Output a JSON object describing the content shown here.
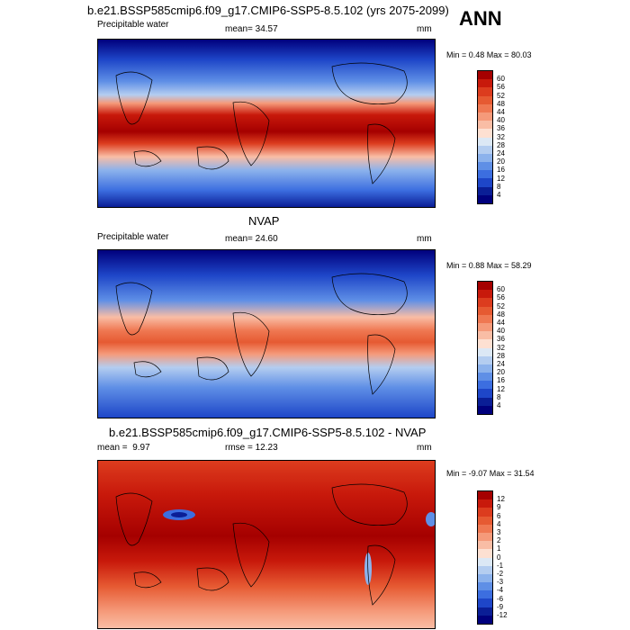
{
  "annual_label": "ANN",
  "panels": [
    {
      "title": "b.e21.BSSP585cmip6.f09_g17.CMIP6-SSP5-8.5.102 (yrs 2075-2099)",
      "left_label": "Precipitable water",
      "mean_label": "mean=",
      "mean_value": "34.57",
      "unit": "mm",
      "minmax": "Min =   0.48 Max =  80.03",
      "levels": [
        "60",
        "56",
        "52",
        "48",
        "44",
        "40",
        "36",
        "32",
        "28",
        "24",
        "20",
        "16",
        "12",
        "8",
        "4"
      ],
      "colors": [
        "#a50000",
        "#c8190b",
        "#dc3c1e",
        "#e65a32",
        "#ef7852",
        "#f59a7a",
        "#f9bda5",
        "#fde0d2",
        "#dce8f5",
        "#b4cdf0",
        "#8cb2ec",
        "#5f8fe6",
        "#3c6ee0",
        "#1e46c8",
        "#0a1e96",
        "#00007d"
      ]
    },
    {
      "title": "NVAP",
      "left_label": "Precipitable water",
      "mean_label": "mean=",
      "mean_value": "24.60",
      "unit": "mm",
      "minmax": "Min =   0.88 Max =  58.29",
      "levels": [
        "60",
        "56",
        "52",
        "48",
        "44",
        "40",
        "36",
        "32",
        "28",
        "24",
        "20",
        "16",
        "12",
        "8",
        "4"
      ],
      "colors": [
        "#a50000",
        "#c8190b",
        "#dc3c1e",
        "#e65a32",
        "#ef7852",
        "#f59a7a",
        "#f9bda5",
        "#fde0d2",
        "#dce8f5",
        "#b4cdf0",
        "#8cb2ec",
        "#5f8fe6",
        "#3c6ee0",
        "#1e46c8",
        "#0a1e96",
        "#00007d"
      ]
    },
    {
      "title": "b.e21.BSSP585cmip6.f09_g17.CMIP6-SSP5-8.5.102 - NVAP",
      "left_label": "mean =",
      "mean_label": "",
      "mean_value": "9.97",
      "rmse_label": "rmse =",
      "rmse_value": "12.23",
      "unit": "mm",
      "minmax": "Min =  -9.07 Max =  31.54",
      "levels": [
        "12",
        "9",
        "6",
        "4",
        "3",
        "2",
        "1",
        "0",
        "-1",
        "-2",
        "-3",
        "-4",
        "-6",
        "-9",
        "-12"
      ],
      "colors": [
        "#a50000",
        "#c8190b",
        "#dc3c1e",
        "#e65a32",
        "#ef7852",
        "#f59a7a",
        "#f9bda5",
        "#fde0d2",
        "#dce8f5",
        "#b4cdf0",
        "#8cb2ec",
        "#5f8fe6",
        "#3c6ee0",
        "#1e46c8",
        "#0a1e96",
        "#00007d"
      ]
    }
  ]
}
